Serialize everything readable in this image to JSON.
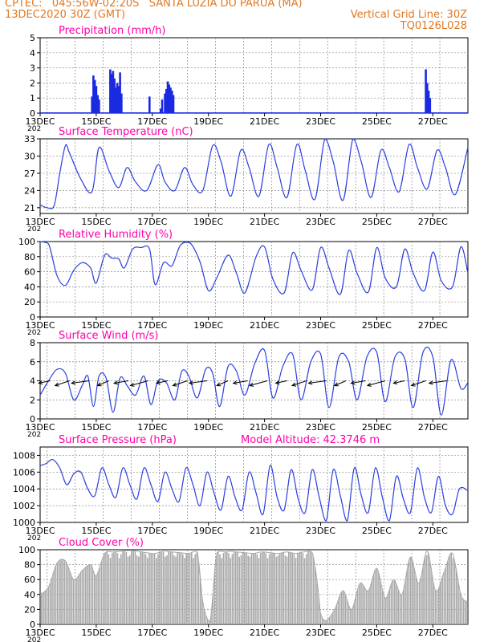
{
  "header": {
    "line1_left": "CPTEC:   045:56W-02:20S   SANTA LUZIA DO PARUA (MA)",
    "line2_left": "13DEC2020 30Z (GMT)",
    "line2_right": "Vertical Grid Line: 30Z",
    "line3_right": "TQ0126L028",
    "color": "#e07820"
  },
  "colors": {
    "title": "#ff00aa",
    "line": "#2a3ee0",
    "bar": "#1a2ae0",
    "cloud": "#a8a8a8",
    "grid": "#888888"
  },
  "x_ticks": [
    "13DEC",
    "15DEC",
    "17DEC",
    "19DEC",
    "21DEC",
    "23DEC",
    "25DEC",
    "27DEC"
  ],
  "stray_label": "202",
  "chart_data": [
    {
      "type": "bar",
      "title": "Precipitation (mm/h)",
      "ylim": [
        0,
        5
      ],
      "yticks": [
        "0",
        "1",
        "2",
        "3",
        "4",
        "5"
      ],
      "x_range_days": [
        13.0,
        28.25
      ],
      "x": [
        14.85,
        14.9,
        14.95,
        15.0,
        15.05,
        15.1,
        15.5,
        15.55,
        15.6,
        15.65,
        15.7,
        15.75,
        15.8,
        15.85,
        15.9,
        16.9,
        17.3,
        17.35,
        17.45,
        17.5,
        17.55,
        17.6,
        17.65,
        17.7,
        17.75,
        26.75,
        26.8,
        26.85,
        26.9
      ],
      "values": [
        1.1,
        2.5,
        2.2,
        1.8,
        1.2,
        0.9,
        2.9,
        2.6,
        2.8,
        2.3,
        1.7,
        2.0,
        1.8,
        2.7,
        1.3,
        1.1,
        0.3,
        0.9,
        1.3,
        1.6,
        2.1,
        1.9,
        1.7,
        1.5,
        1.2,
        2.9,
        2.0,
        1.5,
        1.0
      ]
    },
    {
      "type": "line",
      "title": "Surface Temperature (nC)",
      "ylim": [
        20,
        33
      ],
      "yticks": [
        "21",
        "24",
        "27",
        "30",
        "33"
      ],
      "series": [
        {
          "x": [
            13.0,
            13.25,
            13.5,
            13.7,
            13.9,
            14.05,
            14.45,
            14.85,
            15.1,
            15.45,
            15.8,
            16.1,
            16.4,
            16.8,
            17.2,
            17.45,
            17.8,
            18.15,
            18.45,
            18.8,
            19.15,
            19.45,
            19.8,
            20.15,
            20.45,
            20.8,
            21.15,
            21.45,
            21.8,
            22.15,
            22.45,
            22.8,
            23.15,
            23.45,
            23.8,
            24.15,
            24.45,
            24.8,
            25.15,
            25.45,
            25.8,
            26.15,
            26.45,
            26.8,
            27.15,
            27.45,
            27.8,
            28.25
          ],
          "values": [
            21.5,
            21.0,
            21.4,
            27.0,
            31.8,
            30.5,
            26.0,
            23.8,
            31.5,
            27.5,
            24.5,
            28.0,
            25.5,
            24.0,
            28.5,
            25.5,
            24.0,
            28.0,
            25.0,
            24.0,
            31.8,
            29.0,
            23.0,
            31.0,
            28.0,
            23.0,
            32.0,
            28.0,
            22.8,
            32.0,
            27.5,
            22.5,
            33.0,
            29.0,
            22.3,
            33.0,
            29.0,
            22.8,
            31.0,
            28.0,
            23.8,
            32.0,
            28.0,
            24.3,
            31.0,
            28.0,
            23.3,
            31.5
          ]
        }
      ]
    },
    {
      "type": "line",
      "title": "Relative Humidity (%)",
      "ylim": [
        0,
        100
      ],
      "yticks": [
        "0",
        "20",
        "40",
        "60",
        "80",
        "100"
      ],
      "series": [
        {
          "x": [
            13.0,
            13.3,
            13.6,
            13.9,
            14.2,
            14.5,
            14.8,
            15.0,
            15.3,
            15.55,
            15.8,
            16.0,
            16.3,
            16.6,
            16.9,
            17.1,
            17.4,
            17.7,
            18.0,
            18.35,
            18.7,
            19.0,
            19.3,
            19.7,
            20.0,
            20.3,
            20.7,
            21.0,
            21.3,
            21.7,
            22.0,
            22.3,
            22.7,
            23.0,
            23.3,
            23.7,
            24.0,
            24.3,
            24.7,
            25.0,
            25.3,
            25.7,
            26.0,
            26.3,
            26.7,
            27.0,
            27.3,
            27.7,
            28.0,
            28.25
          ],
          "values": [
            100,
            97,
            55,
            42,
            62,
            72,
            65,
            45,
            82,
            78,
            77,
            65,
            90,
            92,
            90,
            43,
            72,
            68,
            95,
            98,
            73,
            35,
            52,
            82,
            58,
            32,
            80,
            93,
            50,
            32,
            85,
            62,
            36,
            92,
            65,
            30,
            88,
            58,
            33,
            92,
            52,
            40,
            90,
            58,
            35,
            86,
            48,
            40,
            93,
            58
          ]
        }
      ]
    },
    {
      "type": "line",
      "title": "Surface Wind (m/s)",
      "ylim": [
        0,
        8
      ],
      "yticks": [
        "0",
        "2",
        "4",
        "6",
        "8"
      ],
      "series": [
        {
          "x": [
            13.0,
            13.3,
            13.6,
            13.9,
            14.2,
            14.5,
            14.7,
            14.9,
            15.1,
            15.35,
            15.6,
            15.85,
            16.1,
            16.4,
            16.7,
            16.95,
            17.2,
            17.5,
            17.8,
            18.05,
            18.3,
            18.6,
            18.9,
            19.15,
            19.4,
            19.7,
            20.0,
            20.3,
            20.65,
            21.0,
            21.3,
            21.65,
            22.0,
            22.3,
            22.65,
            23.0,
            23.3,
            23.65,
            24.0,
            24.3,
            24.65,
            25.0,
            25.3,
            25.65,
            26.0,
            26.3,
            26.65,
            27.0,
            27.3,
            27.65,
            28.0,
            28.25
          ],
          "values": [
            2.5,
            4.0,
            5.2,
            4.8,
            2.0,
            3.5,
            4.5,
            1.3,
            4.5,
            4.3,
            0.7,
            4.3,
            3.5,
            2.5,
            4.5,
            1.5,
            4.0,
            3.8,
            2.0,
            5.0,
            4.5,
            2.2,
            5.2,
            4.8,
            1.3,
            5.5,
            5.0,
            2.5,
            5.8,
            7.2,
            2.2,
            5.5,
            6.8,
            2.0,
            6.0,
            6.8,
            1.2,
            6.5,
            6.0,
            2.0,
            6.5,
            7.0,
            1.8,
            6.5,
            6.3,
            1.2,
            7.0,
            6.5,
            0.4,
            6.2,
            3.2,
            3.8
          ]
        }
      ],
      "wind_arrows_x": [
        13.35,
        14.05,
        14.75,
        15.45,
        16.15,
        16.85,
        17.55,
        18.25,
        18.95,
        19.7,
        20.4,
        21.1,
        21.8,
        22.5,
        23.2,
        23.9,
        24.6,
        25.3,
        26.0,
        26.75,
        27.5
      ]
    },
    {
      "type": "line",
      "title": "Surface Pressure (hPa)",
      "annotation": "Model Altitude:  42.3746 m",
      "ylim": [
        1000,
        1009
      ],
      "yticks": [
        "1000",
        "1002",
        "1004",
        "1006",
        "1008"
      ],
      "series": [
        {
          "x": [
            13.0,
            13.2,
            13.45,
            13.7,
            13.95,
            14.2,
            14.45,
            14.7,
            14.95,
            15.2,
            15.45,
            15.7,
            15.95,
            16.2,
            16.45,
            16.7,
            16.95,
            17.2,
            17.45,
            17.7,
            17.95,
            18.2,
            18.45,
            18.7,
            18.95,
            19.2,
            19.45,
            19.7,
            19.95,
            20.2,
            20.45,
            20.7,
            20.95,
            21.2,
            21.45,
            21.7,
            21.95,
            22.2,
            22.45,
            22.7,
            22.95,
            23.2,
            23.45,
            23.7,
            23.95,
            24.2,
            24.45,
            24.7,
            24.95,
            25.2,
            25.45,
            25.7,
            25.95,
            26.2,
            26.45,
            26.7,
            26.95,
            27.2,
            27.45,
            27.7,
            27.95,
            28.25
          ],
          "values": [
            1006.8,
            1007.0,
            1007.5,
            1006.5,
            1004.5,
            1005.8,
            1006.0,
            1004.0,
            1003.2,
            1006.5,
            1004.5,
            1003.0,
            1006.5,
            1004.5,
            1002.8,
            1006.5,
            1004.5,
            1002.5,
            1006.0,
            1004.0,
            1002.5,
            1006.5,
            1004.5,
            1002.0,
            1006.0,
            1003.5,
            1001.5,
            1005.5,
            1003.0,
            1001.5,
            1006.0,
            1003.5,
            1001.0,
            1006.8,
            1003.0,
            1001.5,
            1006.3,
            1002.8,
            1001.2,
            1006.3,
            1003.0,
            1000.2,
            1006.3,
            1003.2,
            1000.2,
            1006.5,
            1003.2,
            1001.2,
            1006.5,
            1003.0,
            1000.2,
            1005.5,
            1002.8,
            1001.2,
            1006.5,
            1003.0,
            1001.2,
            1005.5,
            1002.0,
            1001.0,
            1004.0,
            1003.8
          ]
        }
      ]
    },
    {
      "type": "area",
      "title": "Cloud Cover (%)",
      "ylim": [
        0,
        100
      ],
      "yticks": [
        "0",
        "20",
        "40",
        "60",
        "80",
        "100"
      ],
      "series": [
        {
          "x": [
            13.0,
            13.3,
            13.6,
            13.9,
            14.2,
            14.5,
            14.8,
            15.0,
            15.3,
            15.6,
            15.9,
            16.2,
            16.5,
            16.8,
            17.1,
            17.4,
            17.7,
            18.0,
            18.3,
            18.6,
            18.8,
            19.0,
            19.1,
            19.3,
            19.6,
            19.8,
            20.0,
            20.3,
            20.6,
            20.9,
            21.2,
            21.5,
            21.8,
            22.1,
            22.4,
            22.7,
            22.9,
            23.0,
            23.2,
            23.5,
            23.8,
            24.1,
            24.4,
            24.7,
            25.0,
            25.3,
            25.6,
            25.9,
            26.2,
            26.5,
            26.8,
            27.1,
            27.4,
            27.7,
            28.0,
            28.25
          ],
          "values": [
            40,
            50,
            82,
            85,
            60,
            72,
            80,
            65,
            95,
            97,
            98,
            99,
            98,
            96,
            95,
            98,
            97,
            96,
            95,
            97,
            30,
            5,
            15,
            96,
            97,
            98,
            97,
            96,
            95,
            97,
            96,
            95,
            97,
            95,
            97,
            96,
            50,
            15,
            5,
            20,
            45,
            20,
            55,
            45,
            75,
            35,
            60,
            40,
            90,
            55,
            98,
            45,
            70,
            95,
            40,
            30
          ]
        }
      ]
    }
  ]
}
